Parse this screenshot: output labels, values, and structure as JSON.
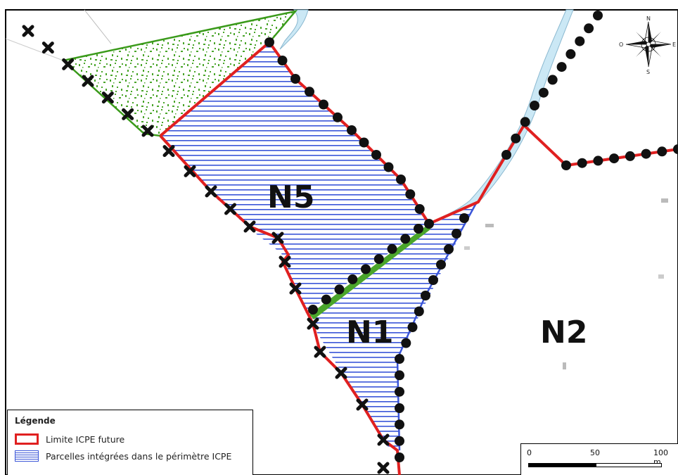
{
  "zones": {
    "n5": "N5",
    "n1": "N1",
    "n2": "N2"
  },
  "compass": {
    "n": "N",
    "s": "S",
    "e": "E",
    "o": "O"
  },
  "legend": {
    "title": "Légende",
    "items": [
      {
        "label": "Limite ICPE future",
        "color": "#e02020"
      },
      {
        "label": "Parcelles intégrées dans le périmètre ICPE",
        "color": "#3a55d8"
      }
    ]
  },
  "scale": {
    "t0": "0",
    "t1": "50",
    "t2": "100 m"
  },
  "colors": {
    "limit_red": "#e02020",
    "parcel_blue": "#3a55d8",
    "green_zone": "#3a9a1a",
    "river": "#cbe8f5"
  },
  "icons": [
    "compass-rose-icon",
    "cross-boundary-marker",
    "dot-boundary-marker"
  ]
}
